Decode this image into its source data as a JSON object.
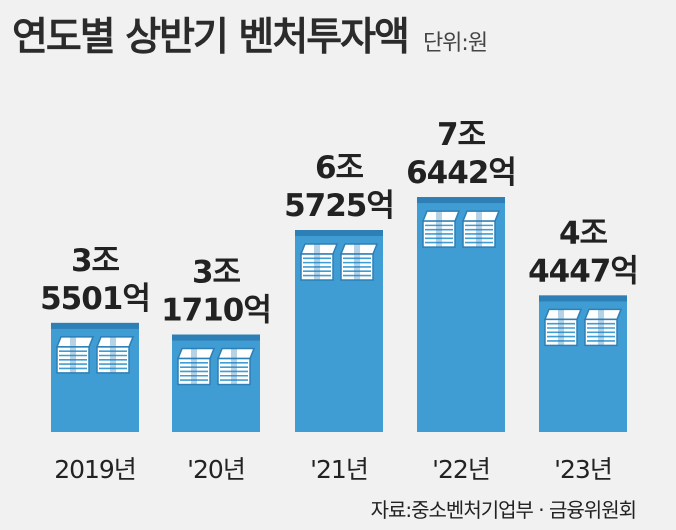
{
  "header": {
    "title": "연도별 상반기 벤처투자액",
    "unit": "단위:원"
  },
  "source": "자료:중소벤처기업부 · 금융위원회",
  "colors": {
    "bar": "#3f9dd3",
    "bar_dark": "#2d7fb6",
    "paper": "#ffffff",
    "paper_edge": "#3f9dd3",
    "text": "#222222",
    "background": "#f1f1f1"
  },
  "chart_data": {
    "type": "bar",
    "title": "연도별 상반기 벤처투자액",
    "categories": [
      "2019년",
      "'20년",
      "'21년",
      "'22년",
      "'23년"
    ],
    "values": [
      35501,
      31710,
      65725,
      76442,
      44447
    ],
    "value_labels": [
      [
        "3조",
        "5501억"
      ],
      [
        "3조",
        "1710억"
      ],
      [
        "6조",
        "5725억"
      ],
      [
        "7조",
        "6442억"
      ],
      [
        "4조",
        "4447억"
      ]
    ],
    "unit": "원",
    "ylim": [
      0,
      82000
    ],
    "grid": false,
    "legend": "none"
  }
}
